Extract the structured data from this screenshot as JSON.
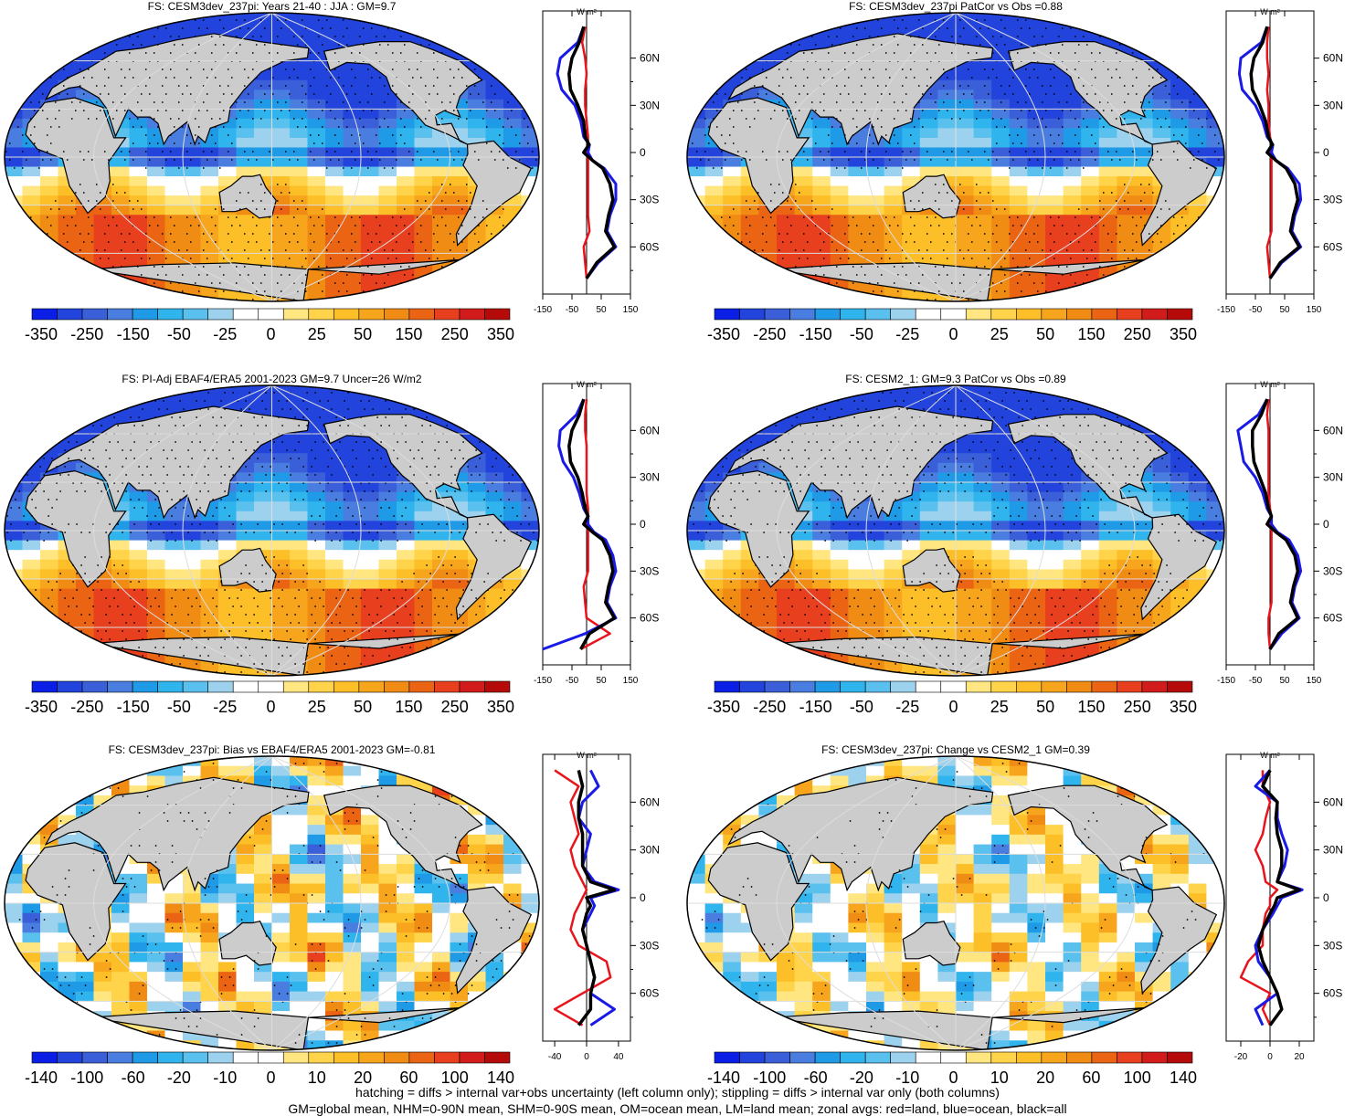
{
  "footer": {
    "line1": "hatching = diffs > internal var+obs uncertainty (left column only); stippling = diffs > internal var only (both columns)",
    "line2": "GM=global mean, NHM=0-90N mean, SHM=0-90S mean, OM=ocean mean, LM=land mean; zonal avgs: red=land, blue=ocean, black=all"
  },
  "colors": {
    "land": "#cccccc",
    "zonal_land": "#e8141c",
    "zonal_ocean": "#1a1ae6",
    "zonal_all": "#000000",
    "palette": [
      "#0a1ee6",
      "#2244dc",
      "#3a5fd8",
      "#4a7de0",
      "#1e9ae6",
      "#30b4ee",
      "#5ac0ee",
      "#9dd2ee",
      "#ffffff",
      "#ffffff",
      "#ffe680",
      "#ffd34a",
      "#fcbf28",
      "#f7a51c",
      "#f08c14",
      "#ea6414",
      "#e8401e",
      "#d21c1c",
      "#b40a0a"
    ]
  },
  "chart_data": [
    {
      "type": "heatmap",
      "title": "FS: CESM3dev_237pi: Years 21-40 : JJA : GM=9.7",
      "colorbar_labels": [
        "-350",
        "-250",
        "-150",
        "-50",
        "-25",
        "0",
        "25",
        "50",
        "150",
        "250",
        "350"
      ],
      "zonal": {
        "units": "W m²",
        "xticks": [
          "-150",
          "-50",
          "50",
          "150"
        ],
        "xlim": [
          -150,
          150
        ],
        "yticks": [
          "60N",
          "30N",
          "0",
          "30S",
          "60S"
        ],
        "ylim": [
          -90,
          90
        ],
        "lat": [
          80,
          70,
          60,
          50,
          40,
          30,
          20,
          10,
          5,
          0,
          -5,
          -10,
          -20,
          -30,
          -40,
          -50,
          -60,
          -70,
          -80
        ],
        "land": [
          -5,
          -15,
          -5,
          0,
          -5,
          -5,
          0,
          5,
          5,
          0,
          5,
          5,
          5,
          5,
          5,
          10,
          -10,
          -5,
          0
        ],
        "ocean": [
          -10,
          -30,
          -90,
          -100,
          -85,
          -40,
          -20,
          -10,
          10,
          5,
          20,
          60,
          100,
          100,
          80,
          70,
          100,
          40,
          0
        ],
        "all": [
          -10,
          -25,
          -50,
          -60,
          -55,
          -30,
          -10,
          -5,
          8,
          -10,
          20,
          55,
          80,
          90,
          75,
          65,
          95,
          35,
          0
        ]
      }
    },
    {
      "type": "heatmap",
      "title": "FS: CESM3dev_237pi PatCor vs Obs =0.88",
      "colorbar_labels": [
        "-350",
        "-250",
        "-150",
        "-50",
        "-25",
        "0",
        "25",
        "50",
        "150",
        "250",
        "350"
      ],
      "zonal": {
        "units": "W m²",
        "xticks": [
          "-150",
          "-50",
          "50",
          "150"
        ],
        "xlim": [
          -150,
          150
        ],
        "yticks": [
          "60N",
          "30N",
          "0",
          "30S",
          "60S"
        ],
        "ylim": [
          -90,
          90
        ],
        "lat": [
          80,
          70,
          60,
          50,
          40,
          30,
          20,
          10,
          5,
          0,
          -5,
          -10,
          -20,
          -30,
          -40,
          -50,
          -60,
          -70,
          -80
        ],
        "land": [
          -5,
          -10,
          -10,
          -5,
          -10,
          -5,
          -5,
          0,
          5,
          0,
          5,
          5,
          5,
          5,
          5,
          5,
          -10,
          -5,
          0
        ],
        "ocean": [
          -10,
          -30,
          -100,
          -105,
          -95,
          -50,
          -25,
          -10,
          10,
          5,
          20,
          60,
          100,
          105,
          85,
          75,
          105,
          40,
          0
        ],
        "all": [
          -10,
          -25,
          -55,
          -65,
          -60,
          -35,
          -15,
          -5,
          8,
          -10,
          20,
          55,
          85,
          95,
          80,
          70,
          100,
          35,
          0
        ]
      }
    },
    {
      "type": "heatmap",
      "title": "FS: PI-Adj EBAF4/ERA5 2001-2023 GM=9.7 Uncer=26 W/m2",
      "colorbar_labels": [
        "-350",
        "-250",
        "-150",
        "-50",
        "-25",
        "0",
        "25",
        "50",
        "150",
        "250",
        "350"
      ],
      "zonal": {
        "units": "W m²",
        "xticks": [
          "-150",
          "-50",
          "50",
          "150"
        ],
        "xlim": [
          -150,
          150
        ],
        "yticks": [
          "60N",
          "30N",
          "0",
          "30S",
          "60S"
        ],
        "ylim": [
          -90,
          90
        ],
        "lat": [
          80,
          70,
          60,
          50,
          40,
          30,
          20,
          10,
          5,
          0,
          -5,
          -10,
          -20,
          -30,
          -40,
          -50,
          -60,
          -70,
          -80
        ],
        "land": [
          0,
          -5,
          -5,
          0,
          0,
          0,
          0,
          5,
          5,
          0,
          5,
          5,
          5,
          5,
          -10,
          -5,
          0,
          80,
          -20
        ],
        "ocean": [
          -10,
          -35,
          -90,
          -95,
          -80,
          -45,
          -25,
          -10,
          5,
          5,
          25,
          65,
          90,
          100,
          80,
          70,
          100,
          -5,
          -150
        ],
        "all": [
          -10,
          -25,
          -50,
          -60,
          -55,
          -30,
          -15,
          -5,
          5,
          -10,
          20,
          55,
          80,
          90,
          75,
          65,
          95,
          10,
          -20
        ]
      }
    },
    {
      "type": "heatmap",
      "title": "FS: CESM2_1: GM=9.3 PatCor vs Obs =0.89",
      "colorbar_labels": [
        "-350",
        "-250",
        "-150",
        "-50",
        "-25",
        "0",
        "25",
        "50",
        "150",
        "250",
        "350"
      ],
      "zonal": {
        "units": "W m²",
        "xticks": [
          "-150",
          "-50",
          "50",
          "150"
        ],
        "xlim": [
          -150,
          150
        ],
        "yticks": [
          "60N",
          "30N",
          "0",
          "30S",
          "60S"
        ],
        "ylim": [
          -90,
          90
        ],
        "lat": [
          80,
          70,
          60,
          50,
          40,
          30,
          20,
          10,
          5,
          0,
          -5,
          -10,
          -20,
          -30,
          -40,
          -50,
          -60,
          -70,
          -80
        ],
        "land": [
          -5,
          -10,
          -5,
          -5,
          -5,
          -5,
          -5,
          0,
          5,
          0,
          5,
          5,
          5,
          5,
          5,
          5,
          -5,
          -5,
          0
        ],
        "ocean": [
          -10,
          -40,
          -110,
          -100,
          -90,
          -50,
          -25,
          -10,
          5,
          5,
          25,
          65,
          95,
          105,
          85,
          75,
          100,
          40,
          0
        ],
        "all": [
          -10,
          -30,
          -60,
          -60,
          -55,
          -35,
          -15,
          -5,
          5,
          -10,
          20,
          55,
          85,
          95,
          80,
          70,
          95,
          30,
          0
        ]
      }
    },
    {
      "type": "heatmap",
      "title": "FS: CESM3dev_237pi: Bias vs EBAF4/ERA5 2001-2023 GM=-0.81",
      "colorbar_labels": [
        "-140",
        "-100",
        "-60",
        "-20",
        "-10",
        "0",
        "10",
        "20",
        "60",
        "100",
        "140"
      ],
      "zonal": {
        "units": "W m²",
        "xticks": [
          "-40",
          "0",
          "40"
        ],
        "xlim": [
          -55,
          55
        ],
        "yticks": [
          "60N",
          "30N",
          "0",
          "30S",
          "60S"
        ],
        "ylim": [
          -90,
          90
        ],
        "lat": [
          80,
          70,
          60,
          50,
          40,
          30,
          20,
          10,
          5,
          0,
          -5,
          -10,
          -20,
          -30,
          -40,
          -50,
          -60,
          -70,
          -80
        ],
        "land": [
          -40,
          -10,
          -20,
          -15,
          -10,
          -20,
          -15,
          -5,
          0,
          -5,
          -10,
          -15,
          -20,
          -10,
          25,
          30,
          -5,
          -40,
          -5
        ],
        "ocean": [
          5,
          15,
          -5,
          -10,
          5,
          0,
          -5,
          10,
          40,
          5,
          10,
          5,
          -5,
          0,
          5,
          10,
          5,
          35,
          5
        ],
        "all": [
          -10,
          -5,
          -10,
          -10,
          -5,
          -5,
          -5,
          5,
          35,
          0,
          5,
          0,
          -5,
          0,
          5,
          10,
          5,
          5,
          -10
        ]
      }
    },
    {
      "type": "heatmap",
      "title": "FS: CESM3dev_237pi: Change vs CESM2_1 GM=0.39",
      "colorbar_labels": [
        "-140",
        "-100",
        "-60",
        "-20",
        "-10",
        "0",
        "10",
        "20",
        "60",
        "100",
        "140"
      ],
      "zonal": {
        "units": "W m²",
        "xticks": [
          "-20",
          "0",
          "20"
        ],
        "xlim": [
          -30,
          30
        ],
        "yticks": [
          "60N",
          "30N",
          "0",
          "30S",
          "60S"
        ],
        "ylim": [
          -90,
          90
        ],
        "lat": [
          80,
          70,
          60,
          50,
          40,
          30,
          20,
          10,
          5,
          0,
          -5,
          -10,
          -20,
          -30,
          -40,
          -50,
          -60,
          -70,
          -80
        ],
        "land": [
          -5,
          -5,
          0,
          -3,
          -5,
          -10,
          -5,
          -3,
          5,
          0,
          0,
          -3,
          -5,
          -5,
          -15,
          -20,
          0,
          -5,
          0
        ],
        "ocean": [
          0,
          -10,
          5,
          5,
          8,
          12,
          10,
          5,
          22,
          8,
          5,
          2,
          -5,
          -10,
          -8,
          0,
          5,
          -10,
          -5
        ],
        "all": [
          0,
          -5,
          5,
          4,
          5,
          8,
          8,
          5,
          20,
          5,
          3,
          0,
          -5,
          -8,
          -5,
          0,
          5,
          8,
          0
        ]
      }
    }
  ]
}
